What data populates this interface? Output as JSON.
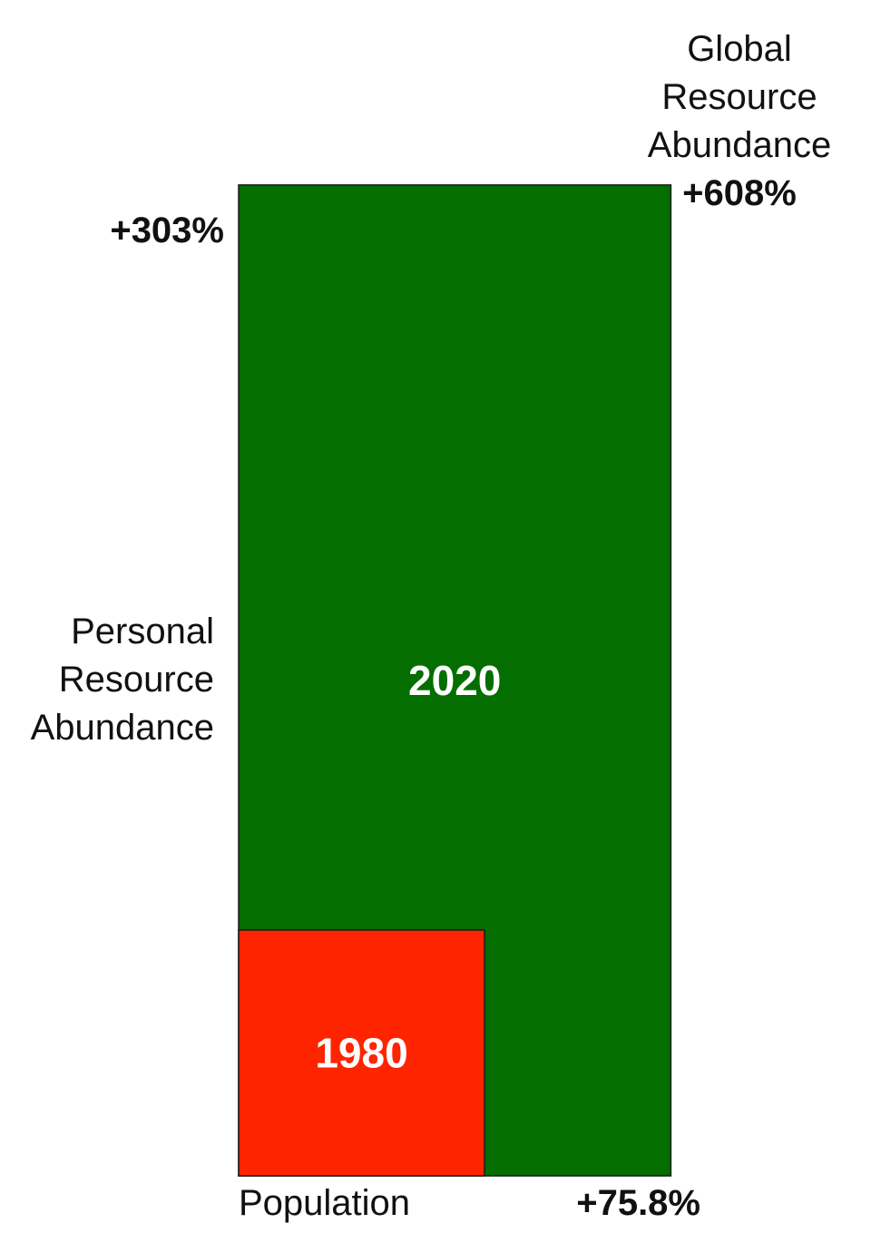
{
  "chart_data": {
    "type": "area",
    "colors": {
      "outer": "#046e00",
      "inner": "#ff2400",
      "stroke": "#1a1a1a",
      "box_label": "#ffffff"
    },
    "global_resource_abundance": {
      "label_lines": [
        "Global",
        "Resource",
        "Abundance"
      ],
      "value_label": "+608%",
      "value": 608
    },
    "personal_resource_abundance": {
      "label_lines": [
        "Personal",
        "Resource",
        "Abundance"
      ],
      "value_label": "+303%",
      "value": 303
    },
    "population": {
      "label": "Population",
      "value_label": "+75.8%",
      "value": 75.8
    },
    "boxes": [
      {
        "name": "1980",
        "width": 1.0,
        "height": 1.0,
        "area": 1.0
      },
      {
        "name": "2020",
        "width": 1.758,
        "height": 4.03,
        "area": 7.08
      }
    ]
  }
}
